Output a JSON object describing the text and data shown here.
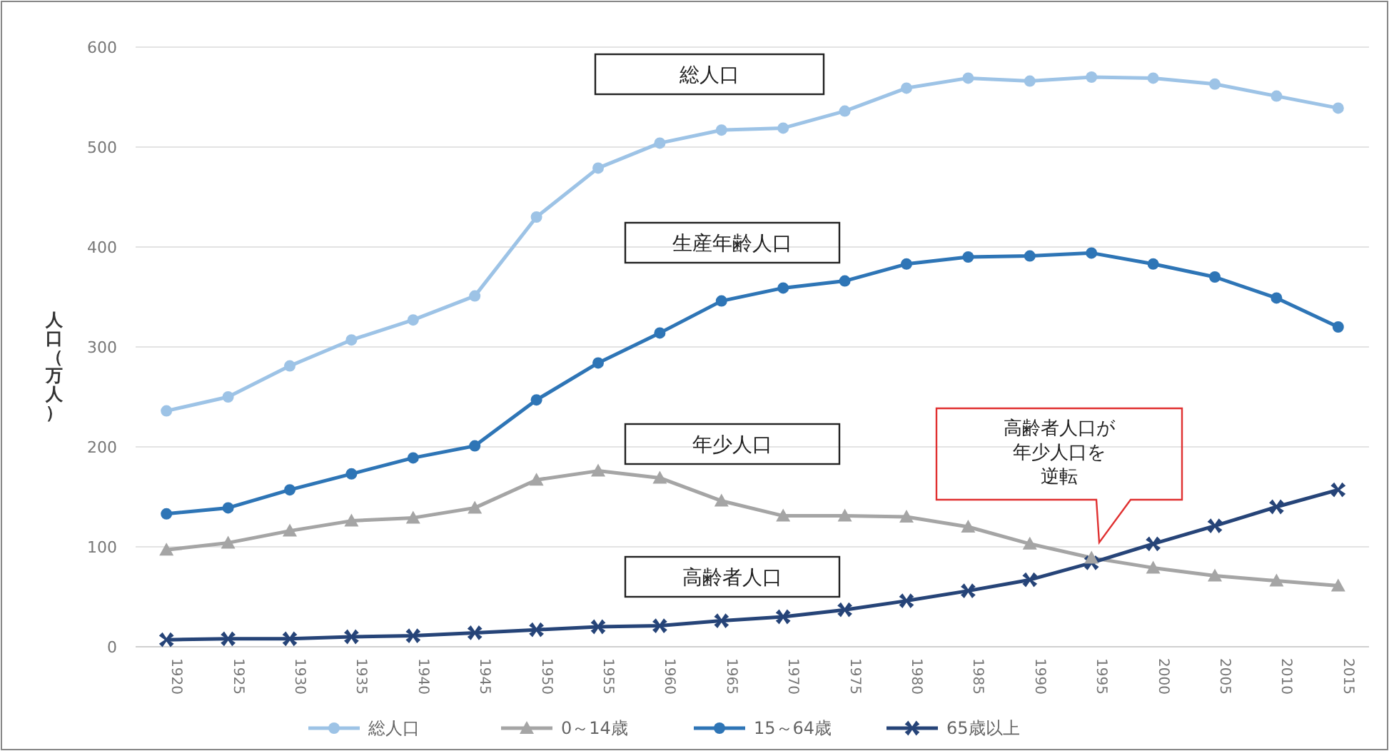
{
  "chart_data": {
    "type": "line",
    "ylabel": "人口（万人）",
    "categories": [
      "1920",
      "1925",
      "1930",
      "1935",
      "1940",
      "1945",
      "1950",
      "1955",
      "1960",
      "1965",
      "1970",
      "1975",
      "1980",
      "1985",
      "1990",
      "1995",
      "2000",
      "2005",
      "2010",
      "2015"
    ],
    "series": [
      {
        "name": "総人口",
        "color": "#9dc3e6",
        "marker": "circle",
        "values": [
          236,
          250,
          281,
          307,
          327,
          351,
          430,
          479,
          504,
          517,
          519,
          536,
          559,
          569,
          566,
          570,
          569,
          563,
          551,
          539
        ]
      },
      {
        "name": "0～14歳",
        "color": "#a5a5a5",
        "marker": "triangle",
        "values": [
          97,
          104,
          116,
          126,
          129,
          139,
          167,
          176,
          169,
          146,
          131,
          131,
          130,
          120,
          103,
          89,
          79,
          71,
          66,
          61
        ]
      },
      {
        "name": "15～64歳",
        "color": "#2e75b6",
        "marker": "circle",
        "values": [
          133,
          139,
          157,
          173,
          189,
          201,
          247,
          284,
          314,
          346,
          359,
          366,
          383,
          390,
          391,
          394,
          383,
          370,
          349,
          320
        ]
      },
      {
        "name": "65歳以上",
        "color": "#264478",
        "marker": "cross",
        "values": [
          7,
          8,
          8,
          10,
          11,
          14,
          17,
          20,
          21,
          26,
          30,
          37,
          46,
          56,
          67,
          84,
          103,
          121,
          140,
          157
        ]
      }
    ],
    "ylim": [
      0,
      600
    ],
    "yticks": [
      0,
      100,
      200,
      300,
      400,
      500,
      600
    ],
    "grid": "y",
    "legend": "bottom",
    "annotations": [
      "総人口",
      "生産年齢人口",
      "年少人口",
      "高齢者人口",
      "高齢者人口が年少人口を逆転"
    ]
  }
}
